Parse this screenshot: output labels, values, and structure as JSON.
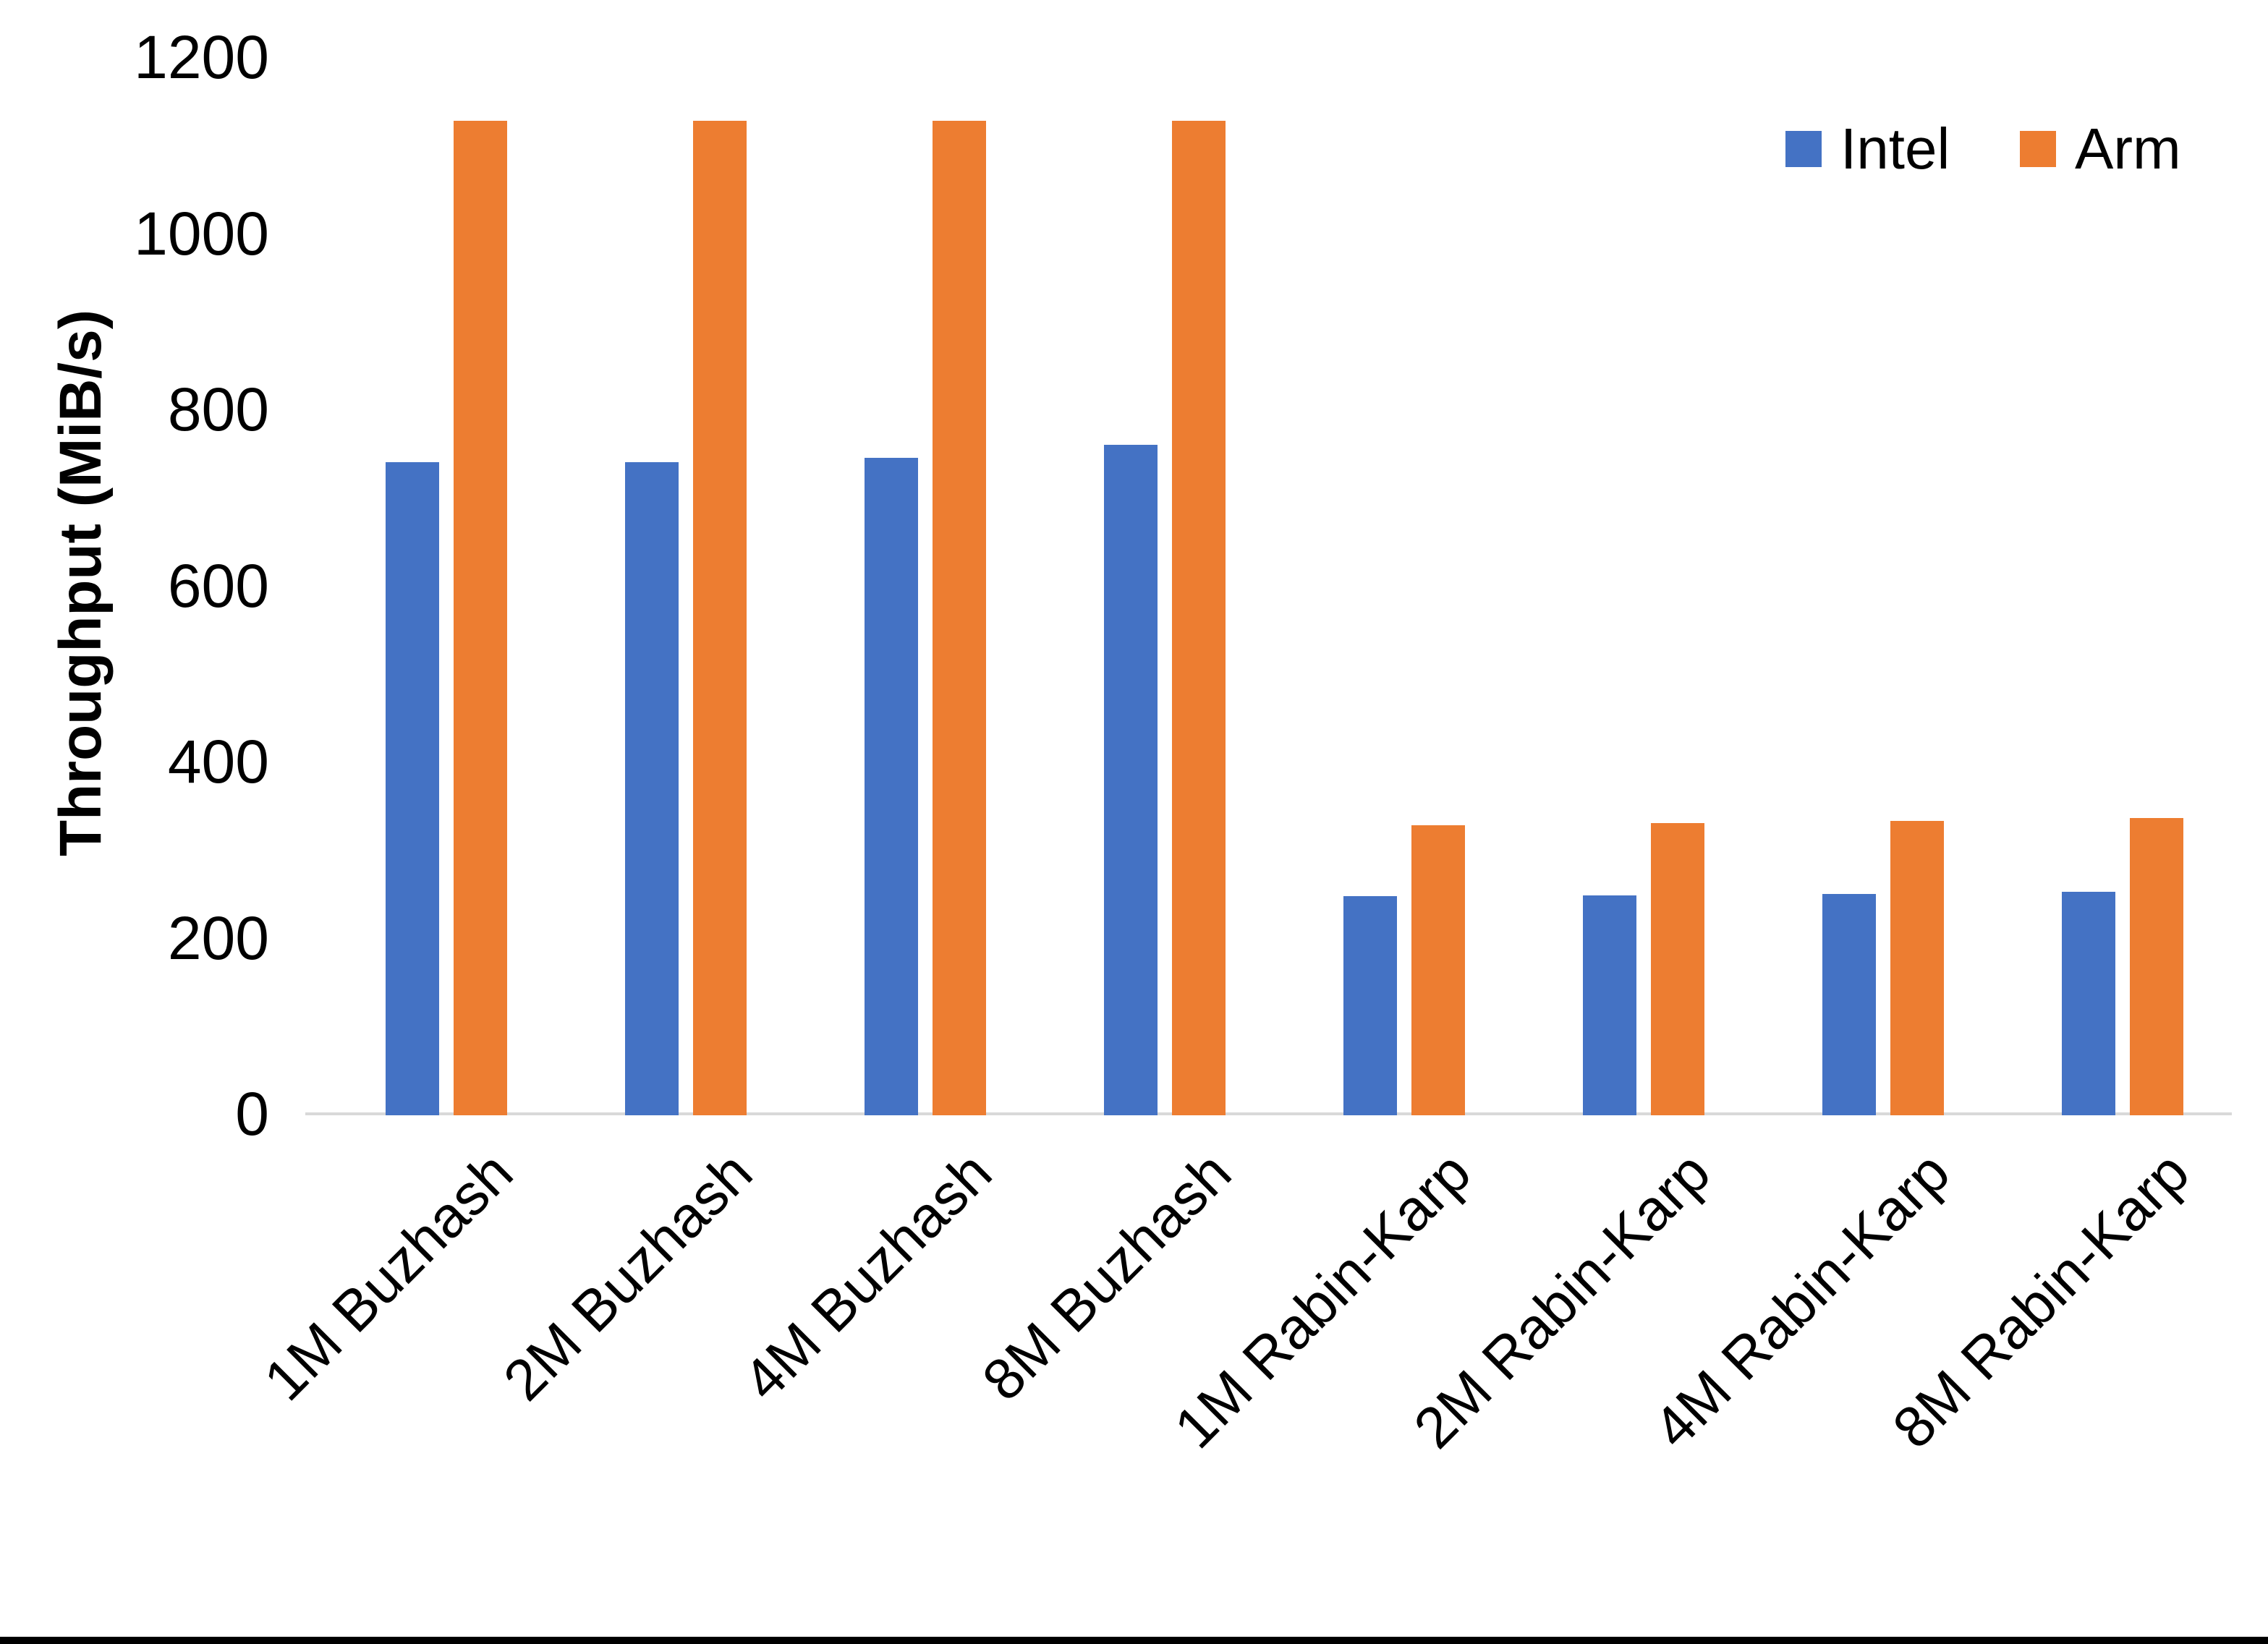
{
  "chart_data": {
    "type": "bar",
    "title": "",
    "ylabel": "Throughput (MiB/s)",
    "xlabel": "",
    "ylim": [
      0,
      1200
    ],
    "yticks": [
      0,
      200,
      400,
      600,
      800,
      1000,
      1200
    ],
    "grid": false,
    "legend_position": "top-right",
    "categories": [
      "1M Buzhash",
      "2M Buzhash",
      "4M Buzhash",
      "8M Buzhash",
      "1M Rabin-Karp",
      "2M Rabin-Karp",
      "4M Rabin-Karp",
      "8M Rabin-Karp"
    ],
    "series": [
      {
        "name": "Intel",
        "color": "#4472C4",
        "values": [
          740,
          740,
          745,
          760,
          247,
          248,
          250,
          252
        ]
      },
      {
        "name": "Arm",
        "color": "#ED7D31",
        "values": [
          1128,
          1128,
          1128,
          1128,
          328,
          330,
          333,
          336
        ]
      }
    ]
  },
  "colors": {
    "axis_line": "#d9d9d9",
    "text": "#000000",
    "background": "#ffffff",
    "bottom_border": "#000000"
  }
}
